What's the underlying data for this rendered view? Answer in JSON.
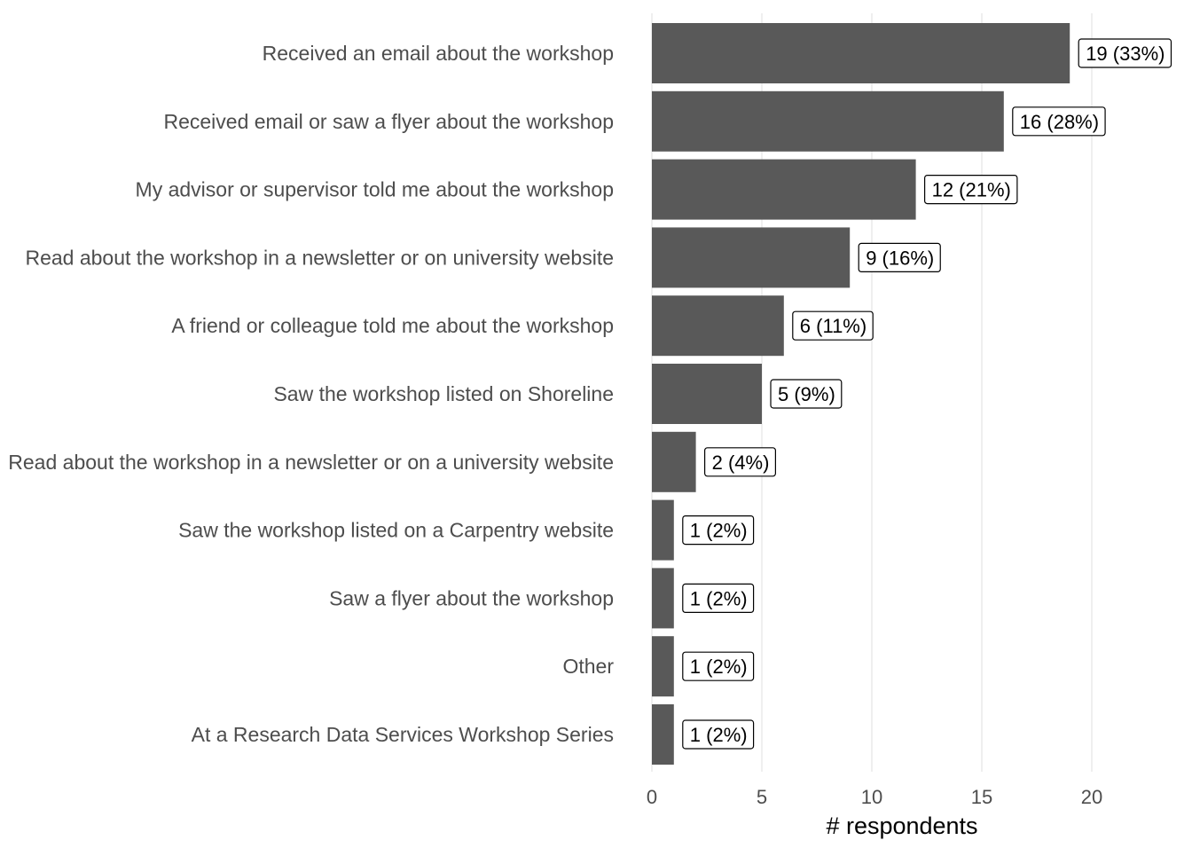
{
  "chart_data": {
    "type": "bar",
    "orientation": "horizontal",
    "categories": [
      "Received an email about the workshop",
      "Received email or saw a flyer about the workshop",
      "My advisor or supervisor told me about the workshop",
      "Read about the workshop in a newsletter or on university website",
      "A friend or colleague told me about the workshop",
      "Saw the workshop listed on Shoreline",
      "Read about the workshop in a newsletter or on a university website",
      "Saw the workshop listed on a Carpentry website",
      "Saw a flyer about the workshop",
      "Other",
      "At a Research Data Services Workshop Series"
    ],
    "values": [
      19,
      16,
      12,
      9,
      6,
      5,
      2,
      1,
      1,
      1,
      1
    ],
    "data_labels": [
      "19 (33%)",
      "16 (28%)",
      "12 (21%)",
      "9 (16%)",
      "6 (11%)",
      "5 (9%)",
      "2 (4%)",
      "1 (2%)",
      "1 (2%)",
      "1 (2%)",
      "1 (2%)"
    ],
    "title": "",
    "xlabel": "# respondents",
    "ylabel": "",
    "xlim": [
      0,
      23.8
    ],
    "xticks": [
      0,
      5,
      10,
      15,
      20
    ],
    "grid": "vertical",
    "legend": "none",
    "bar_color": "#595959"
  }
}
